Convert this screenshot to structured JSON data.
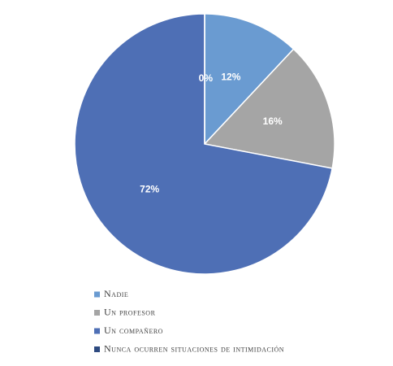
{
  "chart_data": {
    "type": "pie",
    "series": [
      {
        "name": "Nadie",
        "color": "#6a9bd1",
        "values": [
          12
        ],
        "value_labels": [
          "12%"
        ]
      },
      {
        "name": "Un profesor",
        "color": "#a5a5a5",
        "values": [
          16
        ],
        "value_labels": [
          "16%"
        ]
      },
      {
        "name": "Un compañero",
        "color": "#4e6fb5",
        "values": [
          72
        ],
        "value_labels": [
          "72%"
        ]
      },
      {
        "name": "Nunca ocurren situaciones de intimidación",
        "color": "#2d4a80",
        "values": [
          0
        ],
        "value_labels": [
          "0%"
        ]
      }
    ],
    "legend": "bottom"
  }
}
